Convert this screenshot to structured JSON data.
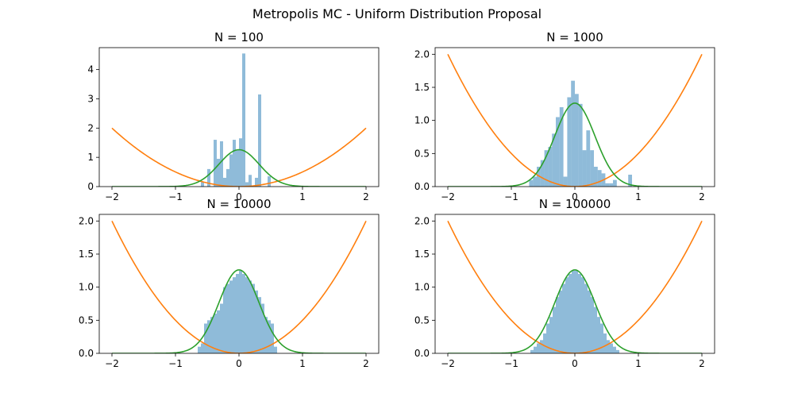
{
  "figure": {
    "suptitle": "Metropolis MC - Uniform Distribution Proposal"
  },
  "colors": {
    "histogram": "#1f77b4",
    "histogram_alpha": 0.5,
    "potential_curve": "#ff7f0e",
    "target_curve": "#2ca02c",
    "axes_edge": "#000000"
  },
  "chart_data": [
    {
      "type": "bar",
      "title": "N = 100",
      "xlim": [
        -2.2,
        2.2
      ],
      "ylim": [
        0,
        4.75
      ],
      "xticks": [
        -2,
        -1,
        0,
        1,
        2
      ],
      "yticks": [
        0,
        1,
        2,
        3,
        4
      ],
      "grid": false,
      "series": [
        {
          "kind": "histogram",
          "bin_width": 0.05,
          "bins": [
            [
              -0.6,
              0.15
            ],
            [
              -0.5,
              0.6
            ],
            [
              -0.4,
              1.6
            ],
            [
              -0.35,
              0.95
            ],
            [
              -0.3,
              1.55
            ],
            [
              -0.25,
              0.3
            ],
            [
              -0.2,
              0.6
            ],
            [
              -0.15,
              1.1
            ],
            [
              -0.1,
              1.6
            ],
            [
              -0.05,
              1.25
            ],
            [
              0.0,
              1.65
            ],
            [
              0.05,
              4.55
            ],
            [
              0.1,
              0.15
            ],
            [
              0.15,
              0.4
            ],
            [
              0.25,
              0.3
            ],
            [
              0.3,
              3.15
            ],
            [
              0.45,
              0.35
            ]
          ]
        },
        {
          "kind": "curve",
          "label_role": "potential x^2/2",
          "x_range": [
            -2,
            2
          ],
          "formula": "x^2/2"
        },
        {
          "kind": "curve",
          "label_role": "target density",
          "x_range": [
            -2,
            2
          ],
          "formula": "exp(-5x^2)*1.2616"
        }
      ]
    },
    {
      "type": "bar",
      "title": "N = 1000",
      "xlim": [
        -2.2,
        2.2
      ],
      "ylim": [
        0,
        2.1
      ],
      "xticks": [
        -2,
        -1,
        0,
        1,
        2
      ],
      "yticks": [
        0,
        0.5,
        1.0,
        1.5,
        2.0
      ],
      "grid": false,
      "series": [
        {
          "kind": "histogram",
          "bin_width": 0.06,
          "bins": [
            [
              -0.72,
              0.1
            ],
            [
              -0.66,
              0.15
            ],
            [
              -0.6,
              0.3
            ],
            [
              -0.54,
              0.4
            ],
            [
              -0.48,
              0.55
            ],
            [
              -0.42,
              0.6
            ],
            [
              -0.36,
              0.8
            ],
            [
              -0.3,
              1.05
            ],
            [
              -0.24,
              1.2
            ],
            [
              -0.18,
              0.15
            ],
            [
              -0.12,
              1.35
            ],
            [
              -0.06,
              1.6
            ],
            [
              0.0,
              1.4
            ],
            [
              0.06,
              1.25
            ],
            [
              0.12,
              0.55
            ],
            [
              0.18,
              0.85
            ],
            [
              0.24,
              0.55
            ],
            [
              0.3,
              0.3
            ],
            [
              0.36,
              0.25
            ],
            [
              0.42,
              0.2
            ],
            [
              0.48,
              0.05
            ],
            [
              0.54,
              0.05
            ],
            [
              0.6,
              0.1
            ],
            [
              0.84,
              0.18
            ]
          ]
        },
        {
          "kind": "curve",
          "label_role": "potential x^2/2",
          "x_range": [
            -2,
            2
          ],
          "formula": "x^2/2"
        },
        {
          "kind": "curve",
          "label_role": "target density",
          "x_range": [
            -2,
            2
          ],
          "formula": "exp(-5x^2)*1.2616"
        }
      ]
    },
    {
      "type": "bar",
      "title": "N = 10000",
      "xlim": [
        -2.2,
        2.2
      ],
      "ylim": [
        0,
        2.1
      ],
      "xticks": [
        -2,
        -1,
        0,
        1,
        2
      ],
      "yticks": [
        0,
        0.5,
        1.0,
        1.5,
        2.0
      ],
      "grid": false,
      "series": [
        {
          "kind": "histogram",
          "bin_width": 0.05,
          "bins": [
            [
              -0.65,
              0.1
            ],
            [
              -0.6,
              0.15
            ],
            [
              -0.55,
              0.45
            ],
            [
              -0.5,
              0.5
            ],
            [
              -0.45,
              0.55
            ],
            [
              -0.4,
              0.6
            ],
            [
              -0.35,
              0.65
            ],
            [
              -0.3,
              0.75
            ],
            [
              -0.25,
              1.0
            ],
            [
              -0.2,
              1.05
            ],
            [
              -0.15,
              1.1
            ],
            [
              -0.1,
              1.15
            ],
            [
              -0.05,
              1.2
            ],
            [
              0.0,
              1.25
            ],
            [
              0.05,
              1.2
            ],
            [
              0.1,
              1.15
            ],
            [
              0.15,
              1.1
            ],
            [
              0.2,
              1.05
            ],
            [
              0.25,
              0.95
            ],
            [
              0.3,
              0.85
            ],
            [
              0.35,
              0.75
            ],
            [
              0.4,
              0.55
            ],
            [
              0.45,
              0.5
            ],
            [
              0.5,
              0.45
            ],
            [
              0.55,
              0.1
            ]
          ]
        },
        {
          "kind": "curve",
          "label_role": "potential x^2/2",
          "x_range": [
            -2,
            2
          ],
          "formula": "x^2/2"
        },
        {
          "kind": "curve",
          "label_role": "target density",
          "x_range": [
            -2,
            2
          ],
          "formula": "exp(-5x^2)*1.2616"
        }
      ]
    },
    {
      "type": "bar",
      "title": "N = 100000",
      "xlim": [
        -2.2,
        2.2
      ],
      "ylim": [
        0,
        2.1
      ],
      "xticks": [
        -2,
        -1,
        0,
        1,
        2
      ],
      "yticks": [
        0,
        0.5,
        1.0,
        1.5,
        2.0
      ],
      "grid": false,
      "series": [
        {
          "kind": "histogram",
          "bin_width": 0.05,
          "bins": [
            [
              -0.7,
              0.05
            ],
            [
              -0.65,
              0.1
            ],
            [
              -0.6,
              0.15
            ],
            [
              -0.55,
              0.2
            ],
            [
              -0.5,
              0.3
            ],
            [
              -0.45,
              0.45
            ],
            [
              -0.4,
              0.55
            ],
            [
              -0.35,
              0.7
            ],
            [
              -0.3,
              0.85
            ],
            [
              -0.25,
              0.95
            ],
            [
              -0.2,
              1.05
            ],
            [
              -0.15,
              1.15
            ],
            [
              -0.1,
              1.2
            ],
            [
              -0.05,
              1.25
            ],
            [
              0.0,
              1.25
            ],
            [
              0.05,
              1.2
            ],
            [
              0.1,
              1.15
            ],
            [
              0.15,
              1.05
            ],
            [
              0.2,
              0.95
            ],
            [
              0.25,
              0.85
            ],
            [
              0.3,
              0.7
            ],
            [
              0.35,
              0.55
            ],
            [
              0.4,
              0.45
            ],
            [
              0.45,
              0.3
            ],
            [
              0.5,
              0.2
            ],
            [
              0.55,
              0.15
            ],
            [
              0.6,
              0.1
            ],
            [
              0.65,
              0.05
            ]
          ]
        },
        {
          "kind": "curve",
          "label_role": "potential x^2/2",
          "x_range": [
            -2,
            2
          ],
          "formula": "x^2/2"
        },
        {
          "kind": "curve",
          "label_role": "target density",
          "x_range": [
            -2,
            2
          ],
          "formula": "exp(-5x^2)*1.2616"
        }
      ]
    }
  ]
}
